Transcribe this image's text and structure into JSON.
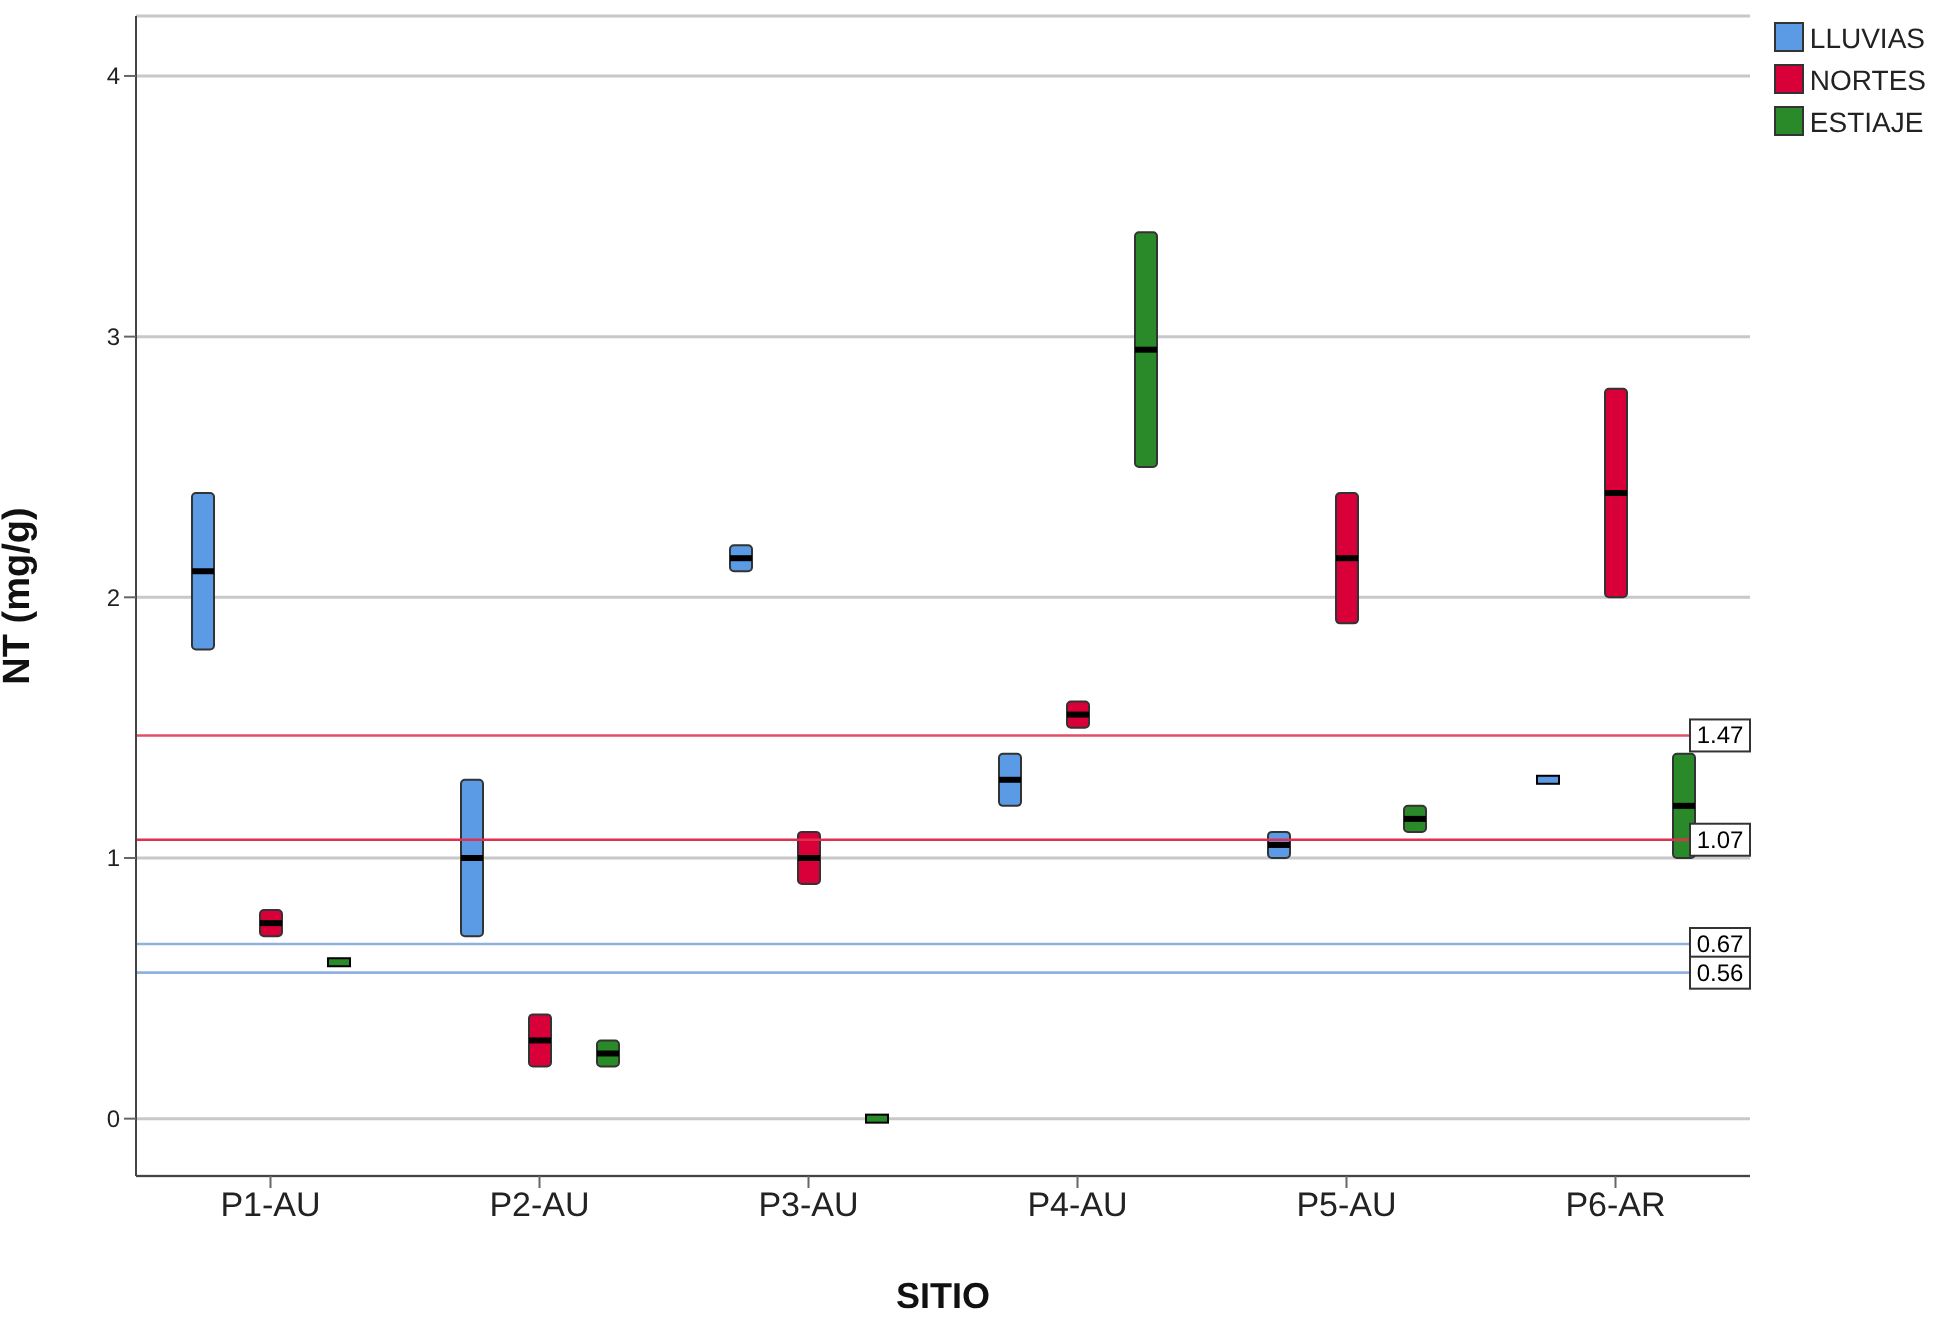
{
  "chart_data": {
    "type": "box",
    "xlabel": "SITIO",
    "ylabel": "NT (mg/g)",
    "categories": [
      "P1-AU",
      "P2-AU",
      "P3-AU",
      "P4-AU",
      "P5-AU",
      "P6-AR"
    ],
    "series": [
      {
        "name": "LLUVIAS",
        "color": "#5b9be6",
        "boxes": [
          {
            "low": 1.8,
            "q1": 1.8,
            "median": 2.1,
            "q3": 2.4,
            "high": 2.4
          },
          {
            "low": 0.7,
            "q1": 0.7,
            "median": 1.0,
            "q3": 1.3,
            "high": 1.3
          },
          {
            "low": 2.1,
            "q1": 2.1,
            "median": 2.15,
            "q3": 2.2,
            "high": 2.2
          },
          {
            "low": 1.2,
            "q1": 1.2,
            "median": 1.3,
            "q3": 1.4,
            "high": 1.4
          },
          {
            "low": 1.0,
            "q1": 1.0,
            "median": 1.05,
            "q3": 1.1,
            "high": 1.1
          },
          {
            "low": 1.3,
            "q1": 1.3,
            "median": 1.3,
            "q3": 1.3,
            "high": 1.3
          }
        ]
      },
      {
        "name": "NORTES",
        "color": "#d9003a",
        "boxes": [
          {
            "low": 0.7,
            "q1": 0.7,
            "median": 0.75,
            "q3": 0.8,
            "high": 0.8
          },
          {
            "low": 0.2,
            "q1": 0.2,
            "median": 0.3,
            "q3": 0.4,
            "high": 0.4
          },
          {
            "low": 0.9,
            "q1": 0.9,
            "median": 1.0,
            "q3": 1.1,
            "high": 1.1
          },
          {
            "low": 1.5,
            "q1": 1.5,
            "median": 1.55,
            "q3": 1.6,
            "high": 1.6
          },
          {
            "low": 1.9,
            "q1": 1.9,
            "median": 2.15,
            "q3": 2.4,
            "high": 2.4
          },
          {
            "low": 2.0,
            "q1": 2.0,
            "median": 2.4,
            "q3": 2.8,
            "high": 2.8
          }
        ]
      },
      {
        "name": "ESTIAJE",
        "color": "#2a8a2a",
        "boxes": [
          {
            "low": 0.6,
            "q1": 0.6,
            "median": 0.6,
            "q3": 0.6,
            "high": 0.6
          },
          {
            "low": 0.2,
            "q1": 0.2,
            "median": 0.25,
            "q3": 0.3,
            "high": 0.3
          },
          {
            "low": 0,
            "q1": 0,
            "median": 0,
            "q3": 0,
            "high": 0
          },
          {
            "low": 2.5,
            "q1": 2.5,
            "median": 2.95,
            "q3": 3.4,
            "high": 3.4
          },
          {
            "low": 1.1,
            "q1": 1.1,
            "median": 1.15,
            "q3": 1.2,
            "high": 1.2
          },
          {
            "low": 1.0,
            "q1": 1.0,
            "median": 1.2,
            "q3": 1.4,
            "high": 1.4
          }
        ]
      }
    ],
    "ylim": [
      -0.22,
      4.23
    ],
    "yticks": [
      0,
      1,
      2,
      3,
      4
    ],
    "grid": "y",
    "legend": "top right",
    "ref_lines": [
      {
        "axis": "y",
        "value": 1.47,
        "label": "1.47",
        "color": "#e0506a"
      },
      {
        "axis": "y",
        "value": 1.07,
        "label": "1.07",
        "color": "#e0304f"
      },
      {
        "axis": "y",
        "value": 0.67,
        "label": "0.67",
        "color": "#8fb0e0"
      },
      {
        "axis": "y",
        "value": 0.56,
        "label": "0.56",
        "color": "#8fb0e0"
      }
    ]
  }
}
